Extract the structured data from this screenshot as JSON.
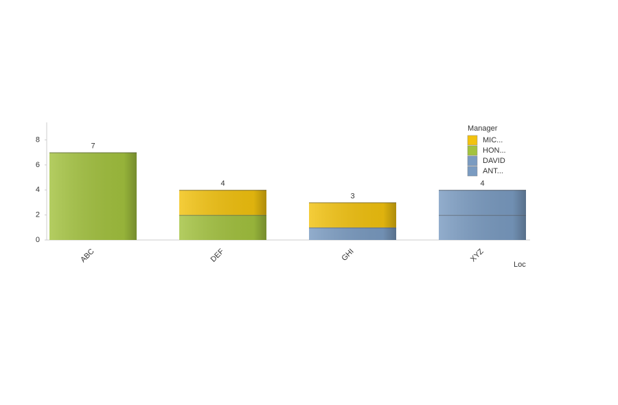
{
  "chart_data": {
    "type": "stacked-bar",
    "categories": [
      "ABC",
      "DEF",
      "GHI",
      "XYZ"
    ],
    "series": [
      {
        "name": "MIC...",
        "color": "#f2c20f",
        "values": [
          null,
          2,
          2,
          null
        ]
      },
      {
        "name": "HON...",
        "color": "#a3c23f",
        "values": [
          7,
          2,
          null,
          null
        ]
      },
      {
        "name": "DAVID",
        "color": "#7a9bc1",
        "values": [
          null,
          null,
          null,
          2
        ]
      },
      {
        "name": "ANT...",
        "color": "#7a9bc1",
        "values": [
          null,
          null,
          1,
          2
        ]
      }
    ],
    "totals": [
      7,
      4,
      3,
      4
    ],
    "x_label": "Loc",
    "legend_title": "Manager",
    "ylim": [
      0,
      9.4
    ],
    "yticks": [
      0,
      2,
      4,
      6,
      8
    ],
    "grid": false
  }
}
